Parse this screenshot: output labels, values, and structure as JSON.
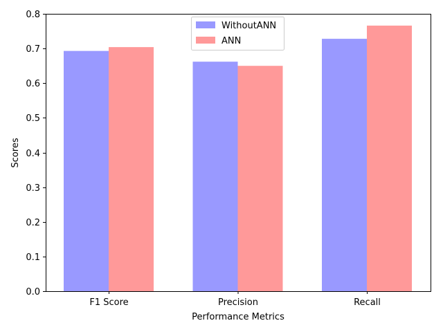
{
  "chart_data": {
    "type": "bar",
    "title": "",
    "xlabel": "Performance Metrics",
    "ylabel": "Scores",
    "categories": [
      "F1 Score",
      "Precision",
      "Recall"
    ],
    "series": [
      {
        "name": "WithoutANN",
        "values": [
          0.693,
          0.662,
          0.728
        ],
        "color": "#9999ff"
      },
      {
        "name": "ANN",
        "values": [
          0.704,
          0.65,
          0.766
        ],
        "color": "#ff9999"
      }
    ],
    "ylim": [
      0,
      0.8
    ],
    "yticks": [
      "0.0",
      "0.1",
      "0.2",
      "0.3",
      "0.4",
      "0.5",
      "0.6",
      "0.7",
      "0.8"
    ],
    "grid": false,
    "legend_position": "top-center"
  }
}
